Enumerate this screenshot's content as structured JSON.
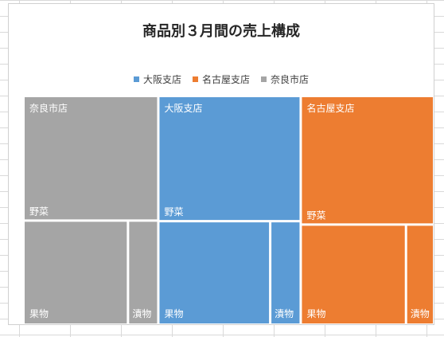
{
  "chart_data": {
    "type": "treemap",
    "title": "商品別３月間の売上構成",
    "legend": {
      "position": "top",
      "entries": [
        "大阪支店",
        "名古屋支店",
        "奈良市店"
      ]
    },
    "colors": {
      "大阪支店": "#5b9bd5",
      "名古屋支店": "#ed7d31",
      "奈良市店": "#a5a5a5"
    },
    "order": [
      "奈良市店",
      "大阪支店",
      "名古屋支店"
    ],
    "series": [
      {
        "name": "奈良市店",
        "children": [
          {
            "label": "野菜",
            "value": 49
          },
          {
            "label": "果物",
            "value": 31
          },
          {
            "label": "漬物",
            "value": 9
          }
        ]
      },
      {
        "name": "大阪支店",
        "children": [
          {
            "label": "野菜",
            "value": 52
          },
          {
            "label": "果物",
            "value": 33
          },
          {
            "label": "漬物",
            "value": 9
          }
        ]
      },
      {
        "name": "名古屋支店",
        "children": [
          {
            "label": "野菜",
            "value": 50
          },
          {
            "label": "果物",
            "value": 30
          },
          {
            "label": "漬物",
            "value": 8
          }
        ]
      }
    ]
  }
}
